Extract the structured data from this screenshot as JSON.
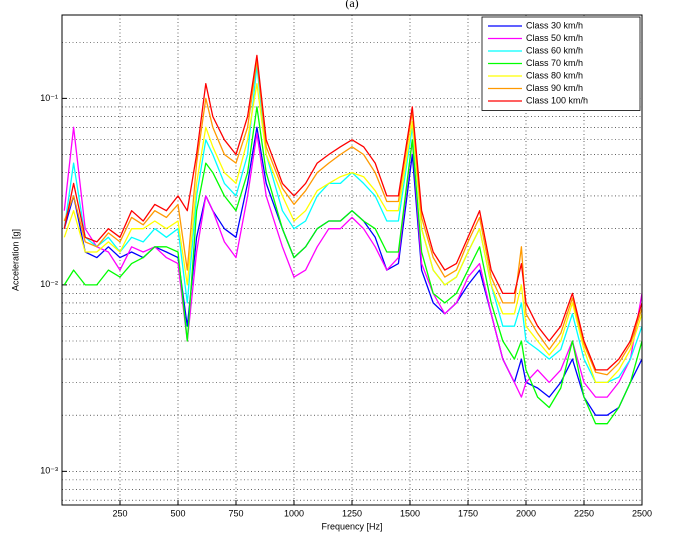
{
  "chart_data": {
    "type": "line",
    "title": "(a)",
    "x_label": "Frequency [Hz]",
    "y_label": "Acceleration [g]",
    "x": [
      10,
      50,
      100,
      150,
      200,
      250,
      300,
      350,
      400,
      450,
      500,
      540,
      580,
      620,
      650,
      700,
      750,
      800,
      840,
      880,
      950,
      1000,
      1050,
      1100,
      1150,
      1200,
      1250,
      1300,
      1350,
      1400,
      1450,
      1510,
      1550,
      1600,
      1650,
      1700,
      1750,
      1800,
      1850,
      1900,
      1950,
      1980,
      2000,
      2050,
      2100,
      2150,
      2200,
      2250,
      2300,
      2350,
      2400,
      2450,
      2500
    ],
    "xlim": [
      0,
      2500
    ],
    "xticks": [
      250,
      500,
      750,
      1000,
      1250,
      1500,
      1750,
      2000,
      2250,
      2500
    ],
    "ylog": true,
    "ylim": [
      0.00066,
      0.28
    ],
    "yticks": [
      {
        "value": 0.001,
        "label": "10⁻³"
      },
      {
        "value": 0.01,
        "label": "10⁻²"
      },
      {
        "value": 0.1,
        "label": "10⁻¹"
      }
    ],
    "yminor": [
      0.0007,
      0.0008,
      0.0009,
      0.002,
      0.003,
      0.004,
      0.005,
      0.006,
      0.007,
      0.008,
      0.009,
      0.02,
      0.03,
      0.04,
      0.05,
      0.06,
      0.07,
      0.08,
      0.09,
      0.2
    ],
    "grid": true,
    "legend": "northeast",
    "series": [
      {
        "name": "Class 30 km/h",
        "color": "#0000ff",
        "values": [
          0.02,
          0.03,
          0.015,
          0.014,
          0.016,
          0.014,
          0.015,
          0.014,
          0.016,
          0.015,
          0.014,
          0.006,
          0.018,
          0.03,
          0.025,
          0.02,
          0.018,
          0.035,
          0.07,
          0.035,
          0.02,
          0.014,
          0.016,
          0.02,
          0.022,
          0.022,
          0.025,
          0.022,
          0.018,
          0.012,
          0.013,
          0.05,
          0.012,
          0.008,
          0.007,
          0.008,
          0.01,
          0.012,
          0.007,
          0.004,
          0.003,
          0.004,
          0.003,
          0.0028,
          0.0025,
          0.003,
          0.004,
          0.0025,
          0.002,
          0.002,
          0.0022,
          0.003,
          0.004
        ]
      },
      {
        "name": "Class 50 km/h",
        "color": "#ff00ff",
        "values": [
          0.025,
          0.07,
          0.02,
          0.016,
          0.015,
          0.012,
          0.016,
          0.015,
          0.016,
          0.014,
          0.013,
          0.005,
          0.015,
          0.03,
          0.025,
          0.017,
          0.014,
          0.03,
          0.065,
          0.03,
          0.016,
          0.011,
          0.012,
          0.016,
          0.02,
          0.02,
          0.023,
          0.02,
          0.016,
          0.012,
          0.014,
          0.06,
          0.013,
          0.009,
          0.007,
          0.008,
          0.011,
          0.013,
          0.007,
          0.004,
          0.003,
          0.0025,
          0.003,
          0.0035,
          0.003,
          0.0035,
          0.005,
          0.003,
          0.0025,
          0.0025,
          0.003,
          0.004,
          0.009
        ]
      },
      {
        "name": "Class 60 km/h",
        "color": "#00ffff",
        "values": [
          0.02,
          0.045,
          0.018,
          0.016,
          0.018,
          0.015,
          0.018,
          0.017,
          0.02,
          0.018,
          0.02,
          0.008,
          0.03,
          0.06,
          0.05,
          0.035,
          0.03,
          0.05,
          0.15,
          0.05,
          0.025,
          0.02,
          0.022,
          0.03,
          0.035,
          0.035,
          0.04,
          0.035,
          0.03,
          0.022,
          0.022,
          0.07,
          0.02,
          0.012,
          0.01,
          0.011,
          0.015,
          0.02,
          0.01,
          0.006,
          0.006,
          0.008,
          0.005,
          0.0045,
          0.004,
          0.0045,
          0.007,
          0.004,
          0.003,
          0.003,
          0.0032,
          0.004,
          0.006
        ]
      },
      {
        "name": "Class 70 km/h",
        "color": "#00ff00",
        "values": [
          0.01,
          0.012,
          0.01,
          0.01,
          0.012,
          0.011,
          0.013,
          0.014,
          0.016,
          0.016,
          0.015,
          0.005,
          0.025,
          0.045,
          0.04,
          0.03,
          0.025,
          0.04,
          0.09,
          0.04,
          0.02,
          0.014,
          0.016,
          0.02,
          0.022,
          0.022,
          0.025,
          0.022,
          0.02,
          0.015,
          0.015,
          0.06,
          0.015,
          0.009,
          0.008,
          0.009,
          0.012,
          0.016,
          0.008,
          0.005,
          0.004,
          0.005,
          0.0035,
          0.0025,
          0.0022,
          0.0028,
          0.005,
          0.0025,
          0.0018,
          0.0018,
          0.0022,
          0.003,
          0.005
        ]
      },
      {
        "name": "Class 80 km/h",
        "color": "#ffff00",
        "values": [
          0.018,
          0.025,
          0.015,
          0.015,
          0.017,
          0.015,
          0.02,
          0.02,
          0.022,
          0.02,
          0.022,
          0.01,
          0.035,
          0.07,
          0.055,
          0.04,
          0.035,
          0.06,
          0.12,
          0.05,
          0.03,
          0.022,
          0.025,
          0.032,
          0.035,
          0.038,
          0.04,
          0.038,
          0.032,
          0.025,
          0.025,
          0.075,
          0.02,
          0.012,
          0.01,
          0.011,
          0.015,
          0.02,
          0.01,
          0.007,
          0.007,
          0.01,
          0.006,
          0.005,
          0.0042,
          0.005,
          0.008,
          0.0045,
          0.003,
          0.003,
          0.0035,
          0.0045,
          0.007
        ]
      },
      {
        "name": "Class 90 km/h",
        "color": "#ff9900",
        "values": [
          0.022,
          0.03,
          0.017,
          0.016,
          0.019,
          0.017,
          0.023,
          0.021,
          0.025,
          0.023,
          0.027,
          0.012,
          0.045,
          0.1,
          0.07,
          0.05,
          0.045,
          0.07,
          0.16,
          0.055,
          0.033,
          0.027,
          0.032,
          0.04,
          0.045,
          0.05,
          0.055,
          0.05,
          0.04,
          0.028,
          0.028,
          0.085,
          0.023,
          0.014,
          0.011,
          0.012,
          0.017,
          0.023,
          0.011,
          0.008,
          0.008,
          0.016,
          0.007,
          0.0055,
          0.0045,
          0.0055,
          0.0085,
          0.0048,
          0.0034,
          0.0033,
          0.0038,
          0.0048,
          0.0075
        ]
      },
      {
        "name": "Class 100 km/h",
        "color": "#ff0000",
        "values": [
          0.02,
          0.035,
          0.018,
          0.017,
          0.02,
          0.018,
          0.025,
          0.022,
          0.027,
          0.025,
          0.03,
          0.025,
          0.05,
          0.12,
          0.08,
          0.06,
          0.05,
          0.08,
          0.17,
          0.06,
          0.035,
          0.03,
          0.035,
          0.045,
          0.05,
          0.055,
          0.06,
          0.055,
          0.045,
          0.03,
          0.03,
          0.09,
          0.025,
          0.015,
          0.012,
          0.013,
          0.018,
          0.025,
          0.012,
          0.009,
          0.009,
          0.013,
          0.008,
          0.006,
          0.005,
          0.006,
          0.009,
          0.005,
          0.0035,
          0.0035,
          0.004,
          0.005,
          0.008
        ]
      }
    ]
  }
}
